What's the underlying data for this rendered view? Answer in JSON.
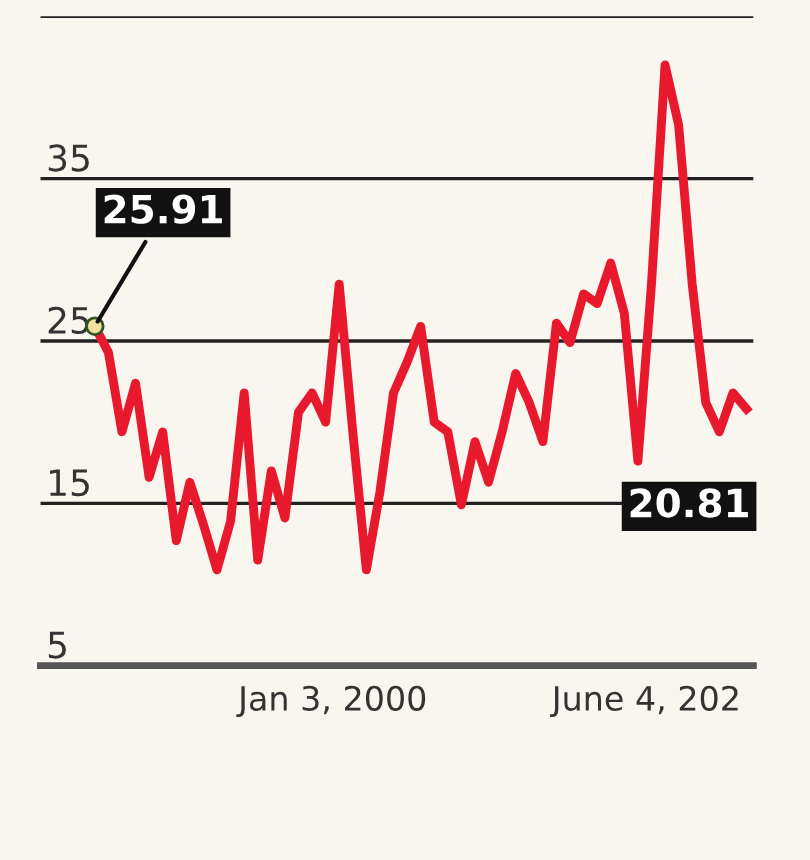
{
  "chart_data": {
    "type": "line",
    "categories": [
      null,
      null,
      null,
      null,
      null,
      null,
      null,
      null,
      null,
      null,
      null,
      null,
      null,
      null,
      null,
      null,
      null,
      null,
      null,
      null,
      null,
      null,
      null,
      null,
      null,
      null,
      null,
      null,
      null,
      null,
      null,
      null,
      null,
      null,
      null,
      null,
      null,
      null,
      null,
      null,
      null,
      null,
      null,
      null,
      null,
      null,
      null,
      null,
      null
    ],
    "series": [
      {
        "color": "#e8192c",
        "values": [
          25.91,
          24.3,
          19.4,
          22.4,
          16.6,
          19.4,
          12.7,
          16.3,
          13.7,
          10.9,
          13.9,
          21.8,
          11.5,
          17,
          14.1,
          20.6,
          21.8,
          20,
          28.5,
          19.4,
          10.9,
          15.7,
          21.8,
          23.7,
          25.9,
          20,
          19.4,
          14.9,
          18.8,
          16.3,
          19.4,
          23,
          21.2,
          18.8,
          26.1,
          24.9,
          27.9,
          27.3,
          29.8,
          26.7,
          17.6,
          28.5,
          42,
          38.3,
          28.5,
          21.2,
          19.4,
          21.8,
          20.81
        ]
      }
    ],
    "ylim": [
      5,
      45
    ],
    "yticks": [
      5,
      15,
      25,
      35,
      {
        "value": 45,
        "label": null
      }
    ],
    "grid": "y",
    "marker": "none",
    "line_style": "solid",
    "value_labels": [
      "25.91",
      null,
      null,
      null,
      null,
      null,
      null,
      null,
      null,
      null,
      null,
      null,
      null,
      null,
      null,
      null,
      null,
      null,
      null,
      null,
      null,
      null,
      null,
      null,
      null,
      null,
      null,
      null,
      null,
      null,
      null,
      null,
      null,
      null,
      null,
      null,
      null,
      null,
      null,
      null,
      null,
      null,
      null,
      null,
      null,
      null,
      null,
      null,
      "20.81"
    ],
    "annotations": [
      "Jan 3, 2000",
      "June 4, 202"
    ]
  }
}
